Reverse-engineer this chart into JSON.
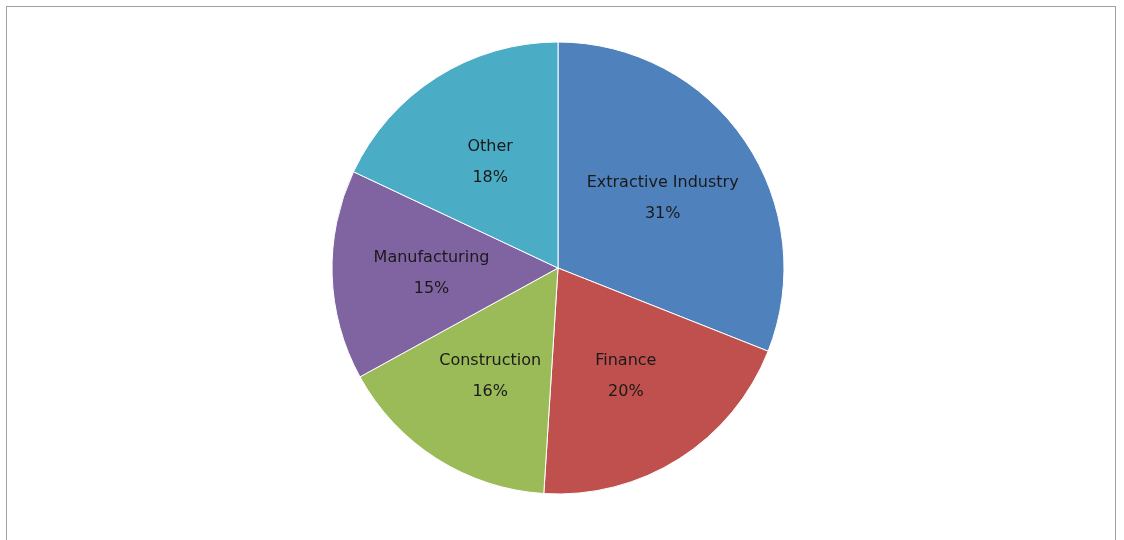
{
  "chart_data": {
    "type": "pie",
    "categories": [
      "Extractive Industry",
      "Finance",
      "Construction",
      "Manufacturing",
      "Other"
    ],
    "values": [
      31,
      20,
      16,
      15,
      18
    ],
    "value_labels": [
      "31%",
      "20%",
      "16%",
      "15%",
      "18%"
    ],
    "colors": [
      "#4f81bd",
      "#c0504d",
      "#9bbb59",
      "#8064a2",
      "#4bacc6"
    ]
  }
}
